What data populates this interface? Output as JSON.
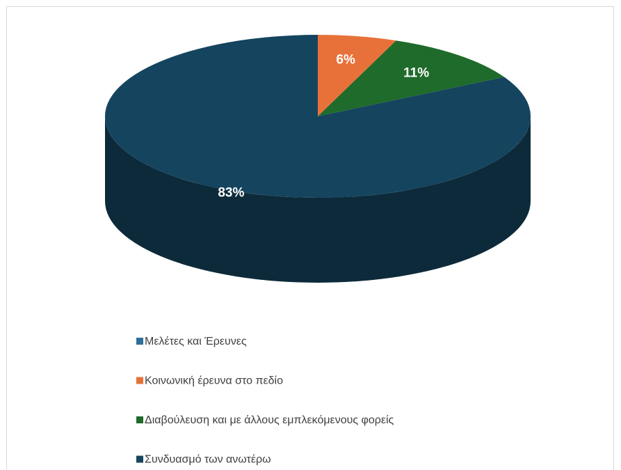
{
  "chart_data": {
    "type": "pie3d",
    "categories": [
      "Μελέτες και Έρευνες",
      "Κοινωνική έρευνα στο πεδίο",
      "Διαβούλευση και με άλλους εμπλεκόμενους φορείς",
      "Συνδυασμό των ανωτέρω"
    ],
    "values": [
      0,
      6,
      11,
      83
    ],
    "value_labels": [
      null,
      "6%",
      "11%",
      "83%"
    ],
    "colors": [
      "#2f6f9c",
      "#e8713a",
      "#1f6b2b",
      "#15445e"
    ],
    "legend": "bottom"
  }
}
